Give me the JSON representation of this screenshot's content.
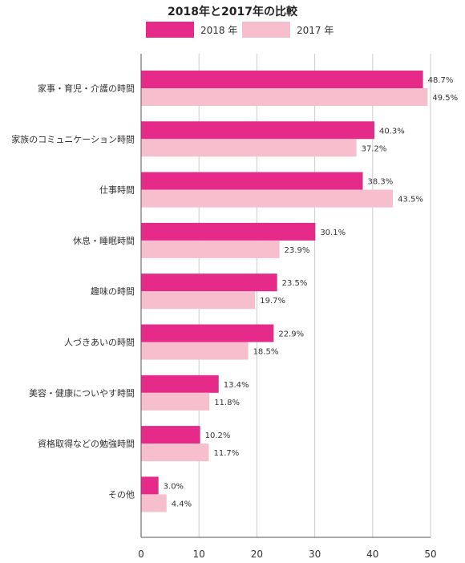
{
  "chart_data": {
    "type": "bar",
    "orientation": "horizontal",
    "title": "2018年と2017年の比較",
    "categories": [
      "家事・育児・介護の時間",
      "家族のコミュニケーション時間",
      "仕事時間",
      "休息・睡眠時間",
      "趣味の時間",
      "人づきあいの時間",
      "美容・健康についやす時間",
      "資格取得などの勉強時間",
      "その他"
    ],
    "series": [
      {
        "name": "2018 年",
        "color": "#e62a8a",
        "values": [
          48.7,
          40.3,
          38.3,
          30.1,
          23.5,
          22.9,
          13.4,
          10.2,
          3.0
        ],
        "labels": [
          "48.7%",
          "40.3%",
          "38.3%",
          "30.1%",
          "23.5%",
          "22.9%",
          "13.4%",
          "10.2%",
          "3.0%"
        ]
      },
      {
        "name": "2017 年",
        "color": "#f7bfcd",
        "values": [
          49.5,
          37.2,
          43.5,
          23.9,
          19.7,
          18.5,
          11.8,
          11.7,
          4.4
        ],
        "labels": [
          "49.5%",
          "37.2%",
          "43.5%",
          "23.9%",
          "19.7%",
          "18.5%",
          "11.8%",
          "11.7%",
          "4.4%"
        ]
      }
    ],
    "xlim": [
      0,
      50
    ],
    "xticks": [
      0,
      10,
      20,
      30,
      40,
      50
    ],
    "xtick_labels": [
      "0",
      "10",
      "20",
      "30",
      "40",
      "50"
    ],
    "grid": "vertical",
    "legend_position": "top"
  }
}
